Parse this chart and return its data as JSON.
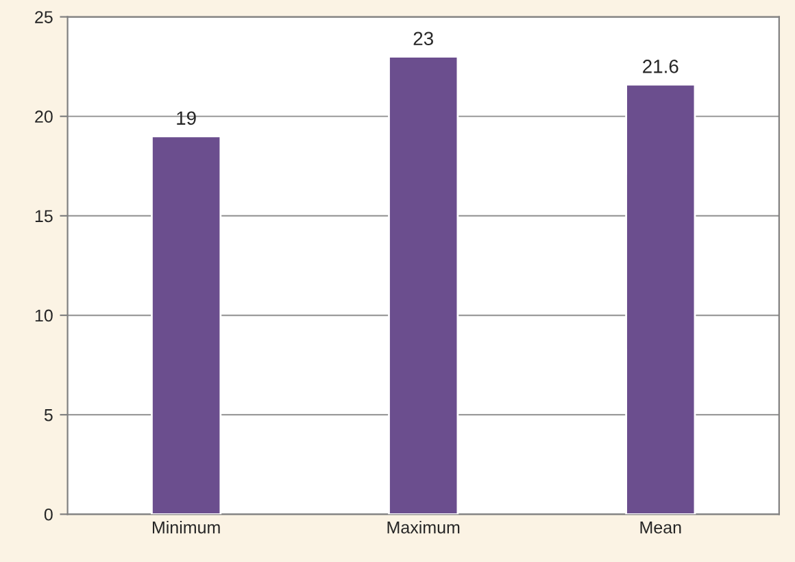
{
  "chart_data": {
    "type": "bar",
    "categories": [
      "Minimum",
      "Maximum",
      "Mean"
    ],
    "values": [
      19,
      23,
      21.6
    ],
    "color": "#6b4e8e",
    "ylim": [
      0,
      25
    ],
    "yticks": [
      0,
      5,
      10,
      15,
      20,
      25
    ],
    "grid": "y",
    "data_labels": true
  }
}
